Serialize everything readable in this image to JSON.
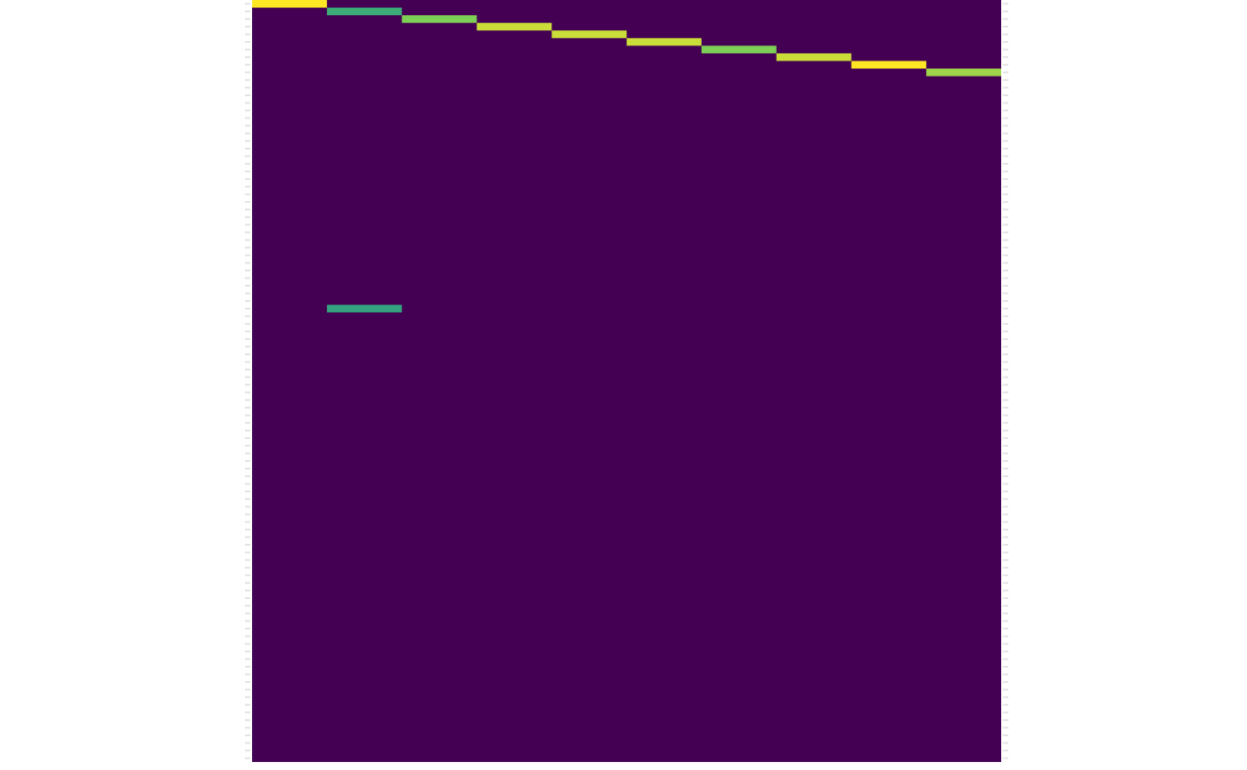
{
  "chart_data": {
    "type": "heatmap",
    "title": "",
    "xlabel": "",
    "ylabel": "",
    "n_rows": 100,
    "n_cols": 10,
    "background_value": 0.0,
    "value_range": [
      0,
      1
    ],
    "colormap": "viridis",
    "cells": [
      {
        "row": 0,
        "col": 0,
        "value": 1.0
      },
      {
        "row": 1,
        "col": 1,
        "value": 0.62
      },
      {
        "row": 2,
        "col": 2,
        "value": 0.8
      },
      {
        "row": 3,
        "col": 3,
        "value": 0.92
      },
      {
        "row": 4,
        "col": 4,
        "value": 0.92
      },
      {
        "row": 5,
        "col": 5,
        "value": 0.92
      },
      {
        "row": 6,
        "col": 6,
        "value": 0.8
      },
      {
        "row": 7,
        "col": 7,
        "value": 0.92
      },
      {
        "row": 8,
        "col": 8,
        "value": 1.0
      },
      {
        "row": 9,
        "col": 9,
        "value": 0.85
      },
      {
        "row": 40,
        "col": 1,
        "value": 0.58
      }
    ],
    "legend": "none",
    "grid": false
  }
}
